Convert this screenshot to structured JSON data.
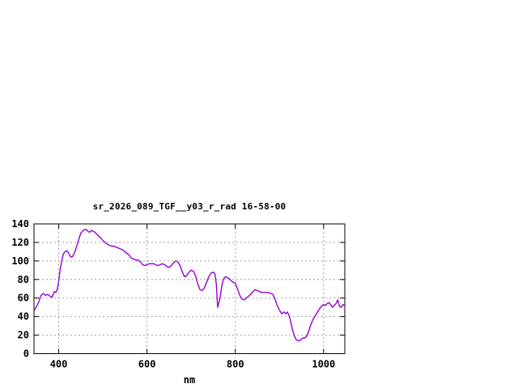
{
  "window": {
    "background": "#ffffff"
  },
  "chart_data": {
    "type": "line",
    "title": "sr_2026_089_TGF__y03_r_rad 16-58-00",
    "xlabel": "nm",
    "ylabel": "",
    "xlim": [
      344,
      1048
    ],
    "ylim": [
      0,
      140
    ],
    "x_ticks": [
      400,
      600,
      800,
      1000
    ],
    "y_ticks": [
      0,
      20,
      40,
      60,
      80,
      100,
      120,
      140
    ],
    "grid": true,
    "legend": "none",
    "line_color": "#9400d3",
    "grid_color": "#a0a0a0",
    "border_color": "#000000",
    "series": [
      {
        "name": "sr_2026_089_TGF__y03_r_rad",
        "x": [
          345,
          350,
          355,
          360,
          365,
          370,
          375,
          380,
          385,
          390,
          393,
          396,
          400,
          403,
          406,
          410,
          414,
          418,
          422,
          426,
          430,
          434,
          438,
          442,
          446,
          450,
          454,
          458,
          462,
          466,
          470,
          474,
          478,
          482,
          486,
          490,
          495,
          500,
          505,
          510,
          515,
          520,
          525,
          530,
          535,
          540,
          545,
          550,
          555,
          560,
          565,
          570,
          575,
          580,
          585,
          590,
          595,
          600,
          605,
          610,
          615,
          620,
          625,
          630,
          635,
          640,
          645,
          650,
          655,
          660,
          665,
          670,
          675,
          680,
          685,
          690,
          695,
          700,
          705,
          710,
          715,
          720,
          725,
          730,
          735,
          740,
          745,
          750,
          754,
          757,
          760,
          763,
          766,
          770,
          774,
          778,
          782,
          786,
          790,
          795,
          800,
          805,
          810,
          815,
          820,
          825,
          830,
          835,
          840,
          845,
          850,
          855,
          860,
          865,
          870,
          875,
          880,
          885,
          890,
          895,
          900,
          905,
          910,
          915,
          918,
          922,
          926,
          930,
          934,
          938,
          942,
          946,
          950,
          954,
          958,
          962,
          966,
          970,
          975,
          980,
          985,
          990,
          995,
          1000,
          1004,
          1008,
          1012,
          1016,
          1020,
          1024,
          1028,
          1032,
          1036,
          1040,
          1044,
          1047
        ],
        "y": [
          47,
          51,
          56,
          63,
          65,
          63,
          64,
          62,
          61,
          67,
          66,
          68,
          78,
          90,
          98,
          107,
          110,
          111,
          109,
          105,
          104,
          107,
          112,
          118,
          124,
          130,
          132,
          134,
          134,
          132,
          131,
          133,
          132,
          131,
          129,
          127,
          125,
          122,
          120,
          118,
          117,
          116,
          116,
          115,
          114,
          113,
          112,
          110,
          108,
          106,
          103,
          102,
          101,
          101,
          99,
          96,
          95,
          96,
          97,
          97,
          97,
          96,
          95,
          96,
          97,
          96,
          94,
          93,
          95,
          98,
          100,
          99,
          95,
          88,
          83,
          84,
          88,
          90,
          89,
          84,
          75,
          69,
          68,
          71,
          77,
          83,
          87,
          88,
          86,
          75,
          50,
          55,
          62,
          75,
          81,
          83,
          82,
          81,
          79,
          77,
          76,
          70,
          63,
          59,
          58,
          60,
          62,
          64,
          67,
          69,
          68,
          67,
          66,
          66,
          66,
          66,
          65,
          64,
          59,
          52,
          47,
          43,
          45,
          43,
          45,
          41,
          33,
          25,
          19,
          15,
          14,
          14,
          16,
          17,
          17,
          19,
          24,
          30,
          36,
          40,
          44,
          48,
          51,
          53,
          52,
          54,
          55,
          53,
          50,
          52,
          54,
          58,
          51,
          50,
          53,
          52
        ]
      }
    ]
  }
}
